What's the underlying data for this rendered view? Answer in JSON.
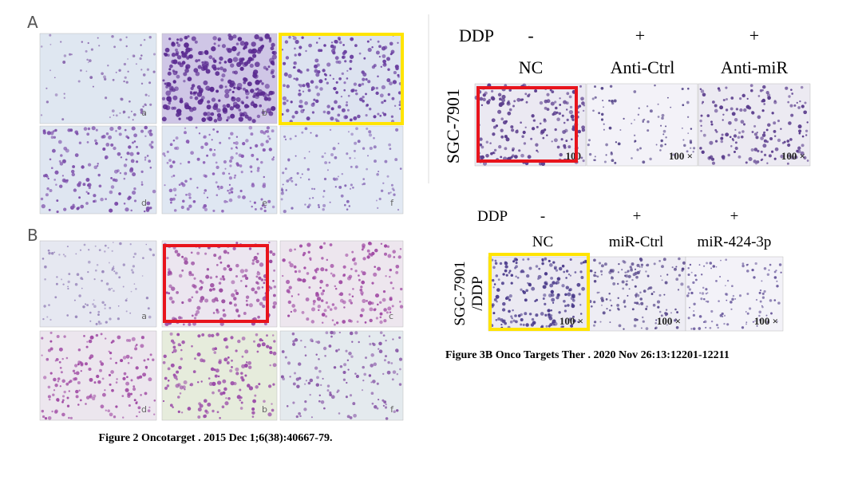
{
  "left_figure": {
    "section_a": {
      "label": "A",
      "panel_labels": [
        "a",
        "b",
        "d",
        "e",
        "f"
      ]
    },
    "section_b": {
      "label": "B",
      "panel_labels": [
        "a",
        "c",
        "d",
        "b",
        "f"
      ]
    },
    "caption": "Figure 2 Oncotarget . 2015 Dec 1;6(38):40667-79."
  },
  "right_figure": {
    "top": {
      "treatment": "DDP",
      "treatment_states": [
        "-",
        "+",
        "+"
      ],
      "groups": [
        "NC",
        "Anti-Ctrl",
        "Anti-miR"
      ],
      "cell_line": [
        "SGC-7901"
      ],
      "magnifications": [
        "100",
        "100 ×",
        "100 ×"
      ]
    },
    "bottom": {
      "treatment": "DDP",
      "treatment_states": [
        "-",
        "+",
        "+"
      ],
      "groups": [
        "NC",
        "miR-Ctrl",
        "miR-424-3p"
      ],
      "cell_line": [
        "SGC-7901",
        "/DDP"
      ],
      "magnifications": [
        "100 ×",
        "100 ×",
        "100 ×"
      ]
    },
    "caption": "Figure 3B Onco Targets Ther . 2020 Nov 26:13:12201-12211"
  }
}
